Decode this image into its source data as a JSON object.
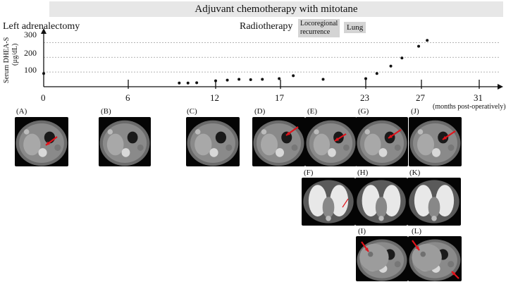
{
  "banner": "Adjuvant chemotherapy with mitotane",
  "events": {
    "surgery": "Left adrenalectomy",
    "radiotherapy": "Radiotherapy",
    "recurrence_line1": "Locoregional",
    "recurrence_line2": "recurrence",
    "lung": "Lung"
  },
  "yaxis_label_line1": "Serum DHEA-S",
  "yaxis_label_line2": "(µg/dL)",
  "xaxis_label": "(months post-operatively)",
  "chart_data": {
    "type": "scatter",
    "ylabel": "Serum DHEA-S (µg/dL)",
    "xlabel": "(months post-operatively)",
    "x_ticks": [
      "0",
      "6",
      "12",
      "17",
      "23",
      "27",
      "31"
    ],
    "y_ticks": [
      "100",
      "200",
      "300"
    ],
    "xlim": [
      0,
      31
    ],
    "ylim": [
      0,
      340
    ],
    "grid_y": [
      100,
      200,
      300
    ],
    "series": [
      {
        "points": [
          [
            0,
            90
          ],
          [
            9.5,
            25
          ],
          [
            10.1,
            25
          ],
          [
            10.7,
            27
          ],
          [
            12,
            40
          ],
          [
            12.9,
            45
          ],
          [
            13.8,
            50
          ],
          [
            14.7,
            48
          ],
          [
            15.6,
            50
          ],
          [
            16.9,
            55
          ],
          [
            17.9,
            75
          ],
          [
            20,
            50
          ],
          [
            23,
            55
          ],
          [
            23.8,
            90
          ],
          [
            24.8,
            140
          ],
          [
            25.6,
            195
          ],
          [
            26.8,
            275
          ],
          [
            27.4,
            315
          ]
        ]
      }
    ]
  },
  "panels": [
    {
      "id": "A",
      "label": "(A)"
    },
    {
      "id": "B",
      "label": "(B)"
    },
    {
      "id": "C",
      "label": "(C)"
    },
    {
      "id": "D",
      "label": "(D)"
    },
    {
      "id": "E",
      "label": "(E)"
    },
    {
      "id": "G",
      "label": "(G)"
    },
    {
      "id": "J",
      "label": "(J)"
    },
    {
      "id": "F",
      "label": "(F)"
    },
    {
      "id": "H",
      "label": "(H)"
    },
    {
      "id": "K",
      "label": "(K)"
    },
    {
      "id": "I",
      "label": "(I)"
    },
    {
      "id": "L",
      "label": "(L)"
    }
  ],
  "colors": {
    "arrow": "#e1131b",
    "grid": "#9a9a9a",
    "banner": "#e7e7e7"
  }
}
